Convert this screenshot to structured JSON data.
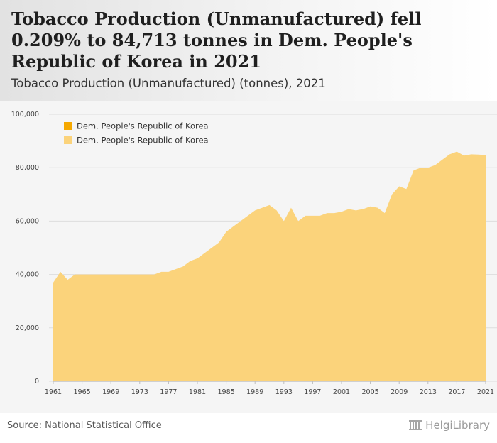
{
  "title": "Tobacco Production (Unmanufactured) fell 0.209% to 84,713 tonnes in Dem. People's Republic of Korea in 2021",
  "subtitle": "Tobacco Production (Unmanufactured) (tonnes), 2021",
  "source": "Source: National Statistical Office",
  "logo": "HelgiLibrary",
  "colors": {
    "area_fill": "#fbd37b",
    "legend_dark": "#f5a800",
    "legend_light": "#fbd37b",
    "gridline": "#dddddd"
  },
  "chart_data": {
    "type": "area",
    "title": "",
    "xlabel": "",
    "ylabel": "",
    "ylim": [
      0,
      100000
    ],
    "yticks": [
      0,
      20000,
      40000,
      60000,
      80000,
      100000
    ],
    "ytick_labels": [
      "0",
      "20,000",
      "40,000",
      "60,000",
      "80,000",
      "100,000"
    ],
    "xlim": [
      1961,
      2021
    ],
    "xtick_labels": [
      "1961",
      "1965",
      "1969",
      "1973",
      "1977",
      "1981",
      "1985",
      "1989",
      "1993",
      "1997",
      "2001",
      "2005",
      "2009",
      "2013",
      "2017",
      "2021"
    ],
    "legend": [
      "Dem. People's Republic of Korea",
      "Dem. People's Republic of Korea"
    ],
    "legend_position": "top-left",
    "grid": true,
    "series": [
      {
        "name": "Dem. People's Republic of Korea",
        "x": [
          1961,
          1962,
          1963,
          1964,
          1965,
          1966,
          1967,
          1968,
          1969,
          1970,
          1971,
          1972,
          1973,
          1974,
          1975,
          1976,
          1977,
          1978,
          1979,
          1980,
          1981,
          1982,
          1983,
          1984,
          1985,
          1986,
          1987,
          1988,
          1989,
          1990,
          1991,
          1992,
          1993,
          1994,
          1995,
          1996,
          1997,
          1998,
          1999,
          2000,
          2001,
          2002,
          2003,
          2004,
          2005,
          2006,
          2007,
          2008,
          2009,
          2010,
          2011,
          2012,
          2013,
          2014,
          2015,
          2016,
          2017,
          2018,
          2019,
          2020,
          2021
        ],
        "values": [
          37000,
          41000,
          38000,
          40000,
          40000,
          40000,
          40000,
          40000,
          40000,
          40000,
          40000,
          40000,
          40000,
          40000,
          40000,
          41000,
          41000,
          42000,
          43000,
          45000,
          46000,
          48000,
          50000,
          52000,
          56000,
          58000,
          60000,
          62000,
          64000,
          65000,
          66000,
          64000,
          60000,
          65000,
          60000,
          62000,
          62000,
          62000,
          63000,
          63000,
          63500,
          64500,
          64000,
          64500,
          65500,
          65000,
          63000,
          70000,
          73000,
          72000,
          79000,
          80000,
          80000,
          81000,
          83000,
          85000,
          86000,
          84500,
          85000,
          84890,
          84713
        ]
      }
    ]
  }
}
